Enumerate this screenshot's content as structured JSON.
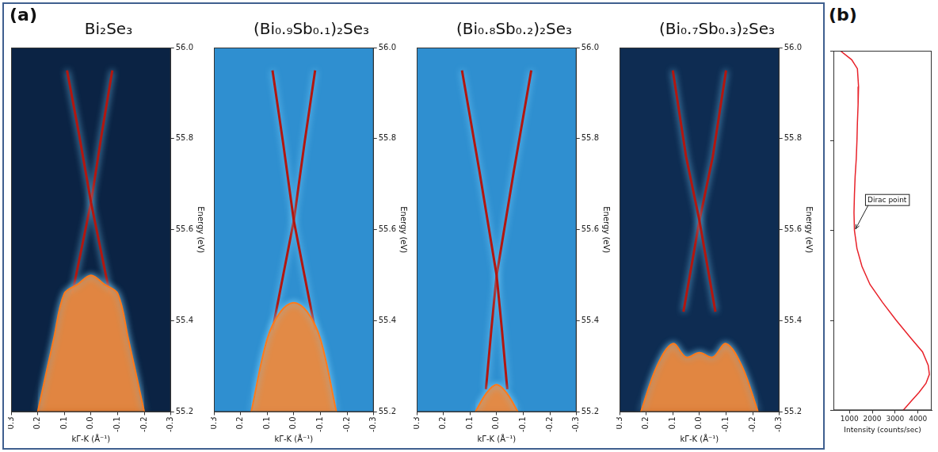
{
  "chart_data": [
    {
      "panel": "(a)",
      "type": "line",
      "title": "Bi₂Se₃",
      "x_label": "kΓ-K (Å⁻¹)",
      "y_label": "Energy (eV)",
      "xlim": [
        0.3,
        -0.3
      ],
      "xticks": [
        0.3,
        0.2,
        0.1,
        {
          "value": 0,
          "label": "0.0"
        },
        -0.1,
        -0.2,
        -0.3
      ],
      "ylim": [
        55.2,
        56.0
      ],
      "yticks": [
        55.2,
        55.4,
        55.6,
        55.8,
        {
          "value": 56,
          "label": "56.0"
        }
      ],
      "grid": false,
      "series": [
        {
          "type": "area",
          "color": "#ff7a1a",
          "x": [
            0.2,
            0.14,
            0.1,
            0.05,
            0,
            -0.05,
            -0.1,
            -0.14,
            -0.2
          ],
          "values": [
            55.2,
            55.36,
            55.46,
            55.48,
            55.5,
            55.48,
            55.46,
            55.36,
            55.2
          ]
        },
        {
          "type": "line",
          "color": "#b3160f",
          "x": [
            0.09,
            0.045,
            0,
            -0.035,
            -0.07
          ],
          "values": [
            55.95,
            55.81,
            55.66,
            55.56,
            55.46
          ]
        },
        {
          "type": "line",
          "color": "#b3160f",
          "x": [
            -0.08,
            -0.04,
            0,
            0.035,
            0.07
          ],
          "values": [
            55.95,
            55.81,
            55.66,
            55.56,
            55.46
          ]
        }
      ]
    },
    {
      "type": "line",
      "title": "(Bi₀.₉Sb₀.₁)₂Se₃",
      "x_label": "kΓ-K (Å⁻¹)",
      "y_label": "Energy (eV)",
      "xlim": [
        0.3,
        -0.3
      ],
      "xticks": [
        0.3,
        0.2,
        0.1,
        {
          "value": 0,
          "label": "0.0"
        },
        -0.1,
        -0.2,
        -0.3
      ],
      "ylim": [
        55.2,
        56.0
      ],
      "yticks": [
        55.2,
        55.4,
        55.6,
        55.8,
        {
          "value": 56,
          "label": "56.0"
        }
      ],
      "grid": false,
      "series": [
        {
          "type": "area",
          "color": "#ff7a1a",
          "x": [
            0.16,
            0.1,
            0.05,
            0,
            -0.05,
            -0.1,
            -0.16
          ],
          "values": [
            55.2,
            55.36,
            55.42,
            55.44,
            55.42,
            55.36,
            55.2
          ]
        },
        {
          "type": "line",
          "color": "#b3160f",
          "x": [
            0.08,
            0.04,
            0,
            -0.04,
            -0.08
          ],
          "values": [
            55.95,
            55.79,
            55.62,
            55.5,
            55.38
          ]
        },
        {
          "type": "line",
          "color": "#b3160f",
          "x": [
            -0.08,
            -0.04,
            0,
            0.04,
            0.08
          ],
          "values": [
            55.95,
            55.79,
            55.62,
            55.5,
            55.38
          ]
        }
      ]
    },
    {
      "type": "line",
      "title": "(Bi₀.₈Sb₀.₂)₂Se₃",
      "x_label": "kΓ-K (Å⁻¹)",
      "y_label": "Energy (eV)",
      "xlim": [
        0.3,
        -0.3
      ],
      "xticks": [
        0.3,
        0.2,
        0.1,
        {
          "value": 0,
          "label": "0.0"
        },
        -0.1,
        -0.2,
        -0.3
      ],
      "ylim": [
        55.2,
        56.0
      ],
      "yticks": [
        55.2,
        55.4,
        55.6,
        55.8,
        {
          "value": 56,
          "label": "56.0"
        }
      ],
      "grid": false,
      "series": [
        {
          "type": "area",
          "color": "#ff7a1a",
          "x": [
            0.08,
            0.04,
            0,
            -0.04,
            -0.08
          ],
          "values": [
            55.2,
            55.24,
            55.26,
            55.24,
            55.2
          ]
        },
        {
          "type": "line",
          "color": "#b3160f",
          "x": [
            0.13,
            0.065,
            0,
            -0.02,
            -0.04
          ],
          "values": [
            55.95,
            55.73,
            55.5,
            55.38,
            55.25
          ]
        },
        {
          "type": "line",
          "color": "#b3160f",
          "x": [
            -0.13,
            -0.065,
            0,
            0.02,
            0.04
          ],
          "values": [
            55.95,
            55.73,
            55.5,
            55.38,
            55.25
          ]
        }
      ]
    },
    {
      "type": "line",
      "title": "(Bi₀.₇Sb₀.₃)₂Se₃",
      "x_label": "kΓ-K (Å⁻¹)",
      "y_label": "Energy (eV)",
      "xlim": [
        0.3,
        -0.3
      ],
      "xticks": [
        0.3,
        0.2,
        0.1,
        {
          "value": 0,
          "label": "0.0"
        },
        -0.1,
        -0.2,
        -0.3
      ],
      "ylim": [
        55.2,
        56.0
      ],
      "yticks": [
        55.2,
        55.4,
        55.6,
        55.8,
        {
          "value": 56,
          "label": "56.0"
        }
      ],
      "grid": false,
      "series": [
        {
          "type": "area",
          "color": "#ff7a1a",
          "x": [
            0.22,
            0.16,
            0.1,
            0.05,
            0,
            -0.05,
            -0.1,
            -0.16,
            -0.22
          ],
          "values": [
            55.2,
            55.3,
            55.35,
            55.32,
            55.33,
            55.32,
            55.35,
            55.3,
            55.2
          ]
        },
        {
          "type": "line",
          "color": "#b3160f",
          "x": [
            0.1,
            0.05,
            0,
            -0.03,
            -0.06
          ],
          "values": [
            55.95,
            55.76,
            55.62,
            55.52,
            55.42
          ]
        },
        {
          "type": "line",
          "color": "#b3160f",
          "x": [
            -0.1,
            -0.05,
            0,
            0.03,
            0.06
          ],
          "values": [
            55.95,
            55.76,
            55.62,
            55.52,
            55.42
          ]
        }
      ]
    },
    {
      "panel": "(b)",
      "type": "line",
      "x_label": "Intensity (counts/sec)",
      "xlim": [
        300,
        4600
      ],
      "xticks": [
        1000,
        2000,
        3000,
        4000
      ],
      "ylim": [
        55.2,
        56.0
      ],
      "yticks": [
        55.2,
        55.4,
        55.6,
        55.8,
        {
          "value": 56,
          "label": "56.0"
        }
      ],
      "grid": false,
      "tick_labels": "x",
      "series": [
        {
          "type": "line",
          "color": "#e8222a",
          "x": [
            600,
            1100,
            1350,
            1400,
            1380,
            1350,
            1330,
            1300,
            1250,
            1220,
            1200,
            1220,
            1330,
            1550,
            1900,
            2450,
            3050,
            3700,
            4200,
            4450,
            4500,
            4350,
            4050,
            3700,
            3350
          ],
          "values": [
            56.0,
            55.98,
            55.96,
            55.92,
            55.88,
            55.84,
            55.8,
            55.76,
            55.72,
            55.68,
            55.64,
            55.6,
            55.56,
            55.52,
            55.48,
            55.44,
            55.4,
            55.36,
            55.33,
            55.3,
            55.28,
            55.26,
            55.24,
            55.22,
            55.2
          ]
        }
      ],
      "annotations": [
        {
          "text": "Dirac point",
          "x": 1200,
          "y": 55.6
        }
      ]
    }
  ]
}
